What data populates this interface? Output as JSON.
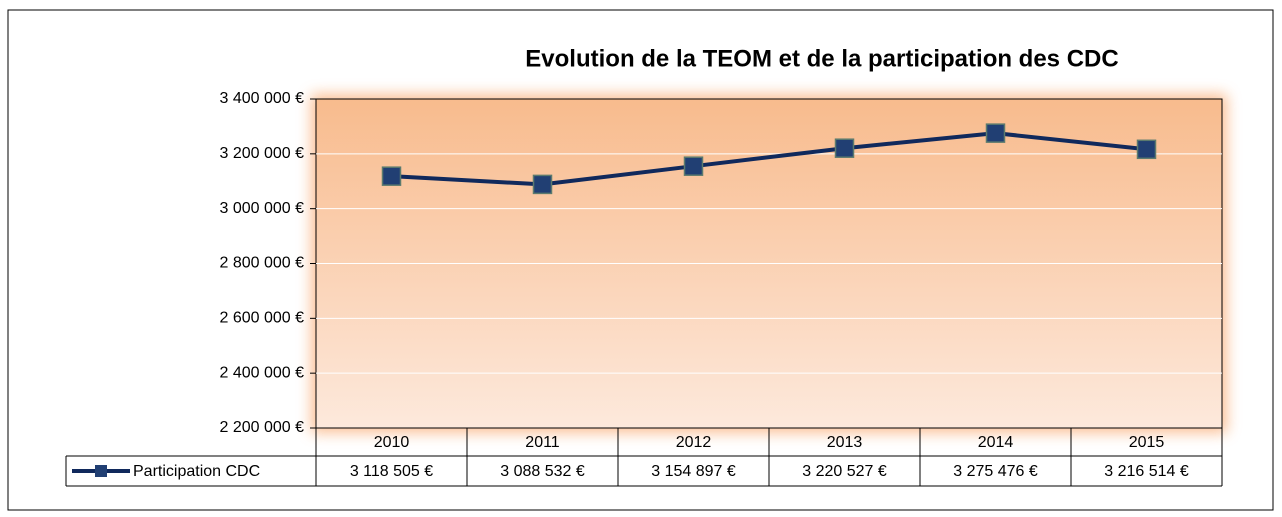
{
  "chart_data": {
    "type": "line",
    "title": "Evolution de la TEOM et de la participation des CDC",
    "categories": [
      "2010",
      "2011",
      "2012",
      "2013",
      "2014",
      "2015"
    ],
    "series": [
      {
        "name": "Participation CDC",
        "color": "#10295c",
        "values": [
          3118505,
          3088532,
          3154897,
          3220527,
          3275476,
          3216514
        ],
        "value_labels": [
          "3 118 505 €",
          "3 088 532 €",
          "3 154 897 €",
          "3 220 527 €",
          "3 275 476 €",
          "3 216 514 €"
        ]
      }
    ],
    "ylim": [
      2200000,
      3400000
    ],
    "yticks": [
      {
        "value": 2200000,
        "label": "2 200 000 €"
      },
      {
        "value": 2400000,
        "label": "2 400 000 €"
      },
      {
        "value": 2600000,
        "label": "2 600 000 €"
      },
      {
        "value": 2800000,
        "label": "2 800 000 €"
      },
      {
        "value": 3000000,
        "label": "3 000 000 €"
      },
      {
        "value": 3200000,
        "label": "3 200 000 €"
      },
      {
        "value": 3400000,
        "label": "3 400 000 €"
      }
    ],
    "grid": true
  }
}
